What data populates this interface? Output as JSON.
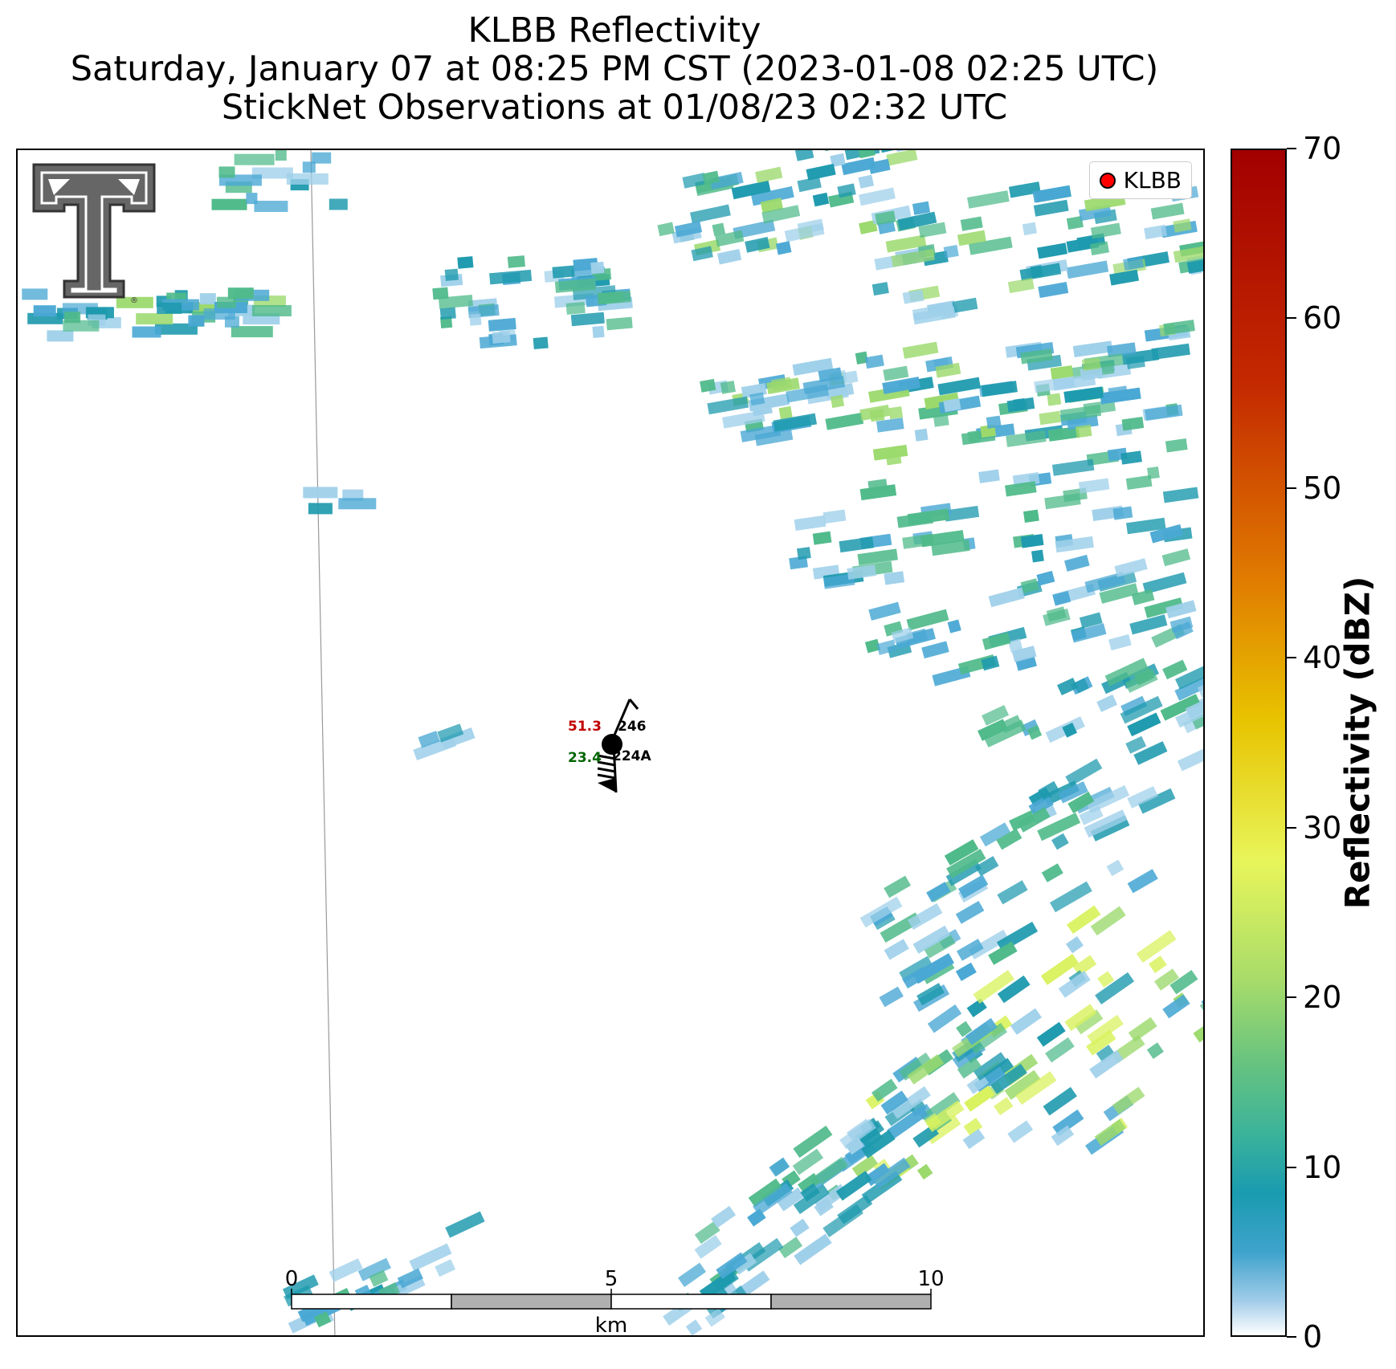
{
  "title": {
    "line1": "KLBB Reflectivity",
    "line2": "Saturday, January 07 at 08:25 PM CST (2023-01-08 02:25 UTC)",
    "line3": "StickNet Observations at 01/08/23 02:32 UTC"
  },
  "legend": {
    "label": "KLBB",
    "marker_color": "#ff0000"
  },
  "station": {
    "id": "224A",
    "temperature": "51.3",
    "dewpoint": "23.4",
    "pressure": "246",
    "temperature_color": "#c00000",
    "dewpoint_color": "#006400"
  },
  "colorbar": {
    "label": "Reflectivity (dBZ)",
    "ticks": [
      "0",
      "10",
      "20",
      "30",
      "40",
      "50",
      "60",
      "70"
    ],
    "min": 0,
    "max": 70
  },
  "scalebar": {
    "unit": "km",
    "ticks": [
      "0",
      "5",
      "10"
    ]
  },
  "logo": {
    "name": "Texas Tech Double T",
    "mark": "®"
  },
  "colors": {
    "light_blue": "#9fd0ea",
    "blue": "#4aa8d4",
    "teal": "#1e9aae",
    "green": "#4fba8a",
    "light_green": "#9bd96c",
    "yellow_green": "#d9f25f"
  }
}
